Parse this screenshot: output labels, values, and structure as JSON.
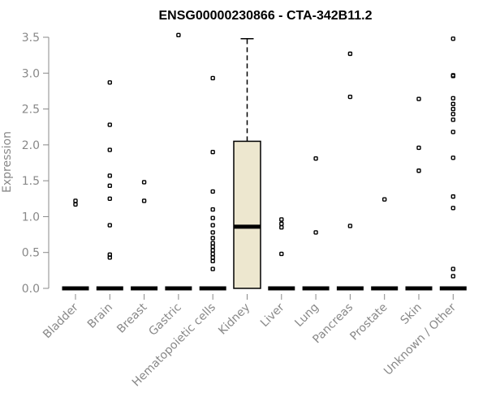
{
  "chart_data": {
    "type": "boxplot",
    "title": "ENSG00000230866 - CTA-342B11.2",
    "ylabel": "Expression",
    "xlabel": "",
    "ylim": [
      0,
      3.5
    ],
    "yticks": [
      "0.0",
      "0.5",
      "1.0",
      "1.5",
      "2.0",
      "2.5",
      "3.0",
      "3.5"
    ],
    "categories": [
      "Bladder",
      "Brain",
      "Breast",
      "Gastric",
      "Hematopoietic cells",
      "Kidney",
      "Liver",
      "Lung",
      "Pancreas",
      "Prostate",
      "Skin",
      "Unknown / Other"
    ],
    "box_color": "#ede7cf",
    "grid": false,
    "series": [
      {
        "category": "Bladder",
        "q1": 0,
        "median": 0,
        "q3": 0,
        "whisker_low": 0,
        "whisker_high": 0,
        "outliers": [
          1.17,
          1.22
        ]
      },
      {
        "category": "Brain",
        "q1": 0,
        "median": 0,
        "q3": 0,
        "whisker_low": 0,
        "whisker_high": 0,
        "outliers": [
          0.43,
          0.47,
          0.88,
          1.25,
          1.43,
          1.57,
          1.93,
          2.28,
          2.87
        ]
      },
      {
        "category": "Breast",
        "q1": 0,
        "median": 0,
        "q3": 0,
        "whisker_low": 0,
        "whisker_high": 0,
        "outliers": [
          1.22,
          1.48
        ]
      },
      {
        "category": "Gastric",
        "q1": 0,
        "median": 0,
        "q3": 0,
        "whisker_low": 0,
        "whisker_high": 0,
        "outliers": [
          3.53
        ]
      },
      {
        "category": "Hematopoietic cells",
        "q1": 0,
        "median": 0,
        "q3": 0,
        "whisker_low": 0,
        "whisker_high": 0,
        "outliers": [
          0.27,
          0.38,
          0.43,
          0.48,
          0.53,
          0.58,
          0.63,
          0.7,
          0.78,
          0.88,
          0.98,
          1.1,
          1.35,
          1.9,
          2.93
        ]
      },
      {
        "category": "Kidney",
        "q1": 0,
        "median": 0.86,
        "q3": 2.05,
        "whisker_low": 0,
        "whisker_high": 3.48,
        "outliers": []
      },
      {
        "category": "Liver",
        "q1": 0,
        "median": 0,
        "q3": 0,
        "whisker_low": 0,
        "whisker_high": 0,
        "outliers": [
          0.48,
          0.85,
          0.9,
          0.96
        ]
      },
      {
        "category": "Lung",
        "q1": 0,
        "median": 0,
        "q3": 0,
        "whisker_low": 0,
        "whisker_high": 0,
        "outliers": [
          0.78,
          1.81
        ]
      },
      {
        "category": "Pancreas",
        "q1": 0,
        "median": 0,
        "q3": 0,
        "whisker_low": 0,
        "whisker_high": 0,
        "outliers": [
          0.87,
          2.67,
          3.27
        ]
      },
      {
        "category": "Prostate",
        "q1": 0,
        "median": 0,
        "q3": 0,
        "whisker_low": 0,
        "whisker_high": 0,
        "outliers": [
          1.24
        ]
      },
      {
        "category": "Skin",
        "q1": 0,
        "median": 0,
        "q3": 0,
        "whisker_low": 0,
        "whisker_high": 0,
        "outliers": [
          1.64,
          1.96,
          2.64
        ]
      },
      {
        "category": "Unknown / Other",
        "q1": 0,
        "median": 0,
        "q3": 0,
        "whisker_low": 0,
        "whisker_high": 0,
        "outliers": [
          0.17,
          0.27,
          1.12,
          1.28,
          1.82,
          2.18,
          2.35,
          2.43,
          2.5,
          2.57,
          2.65,
          2.96,
          2.97,
          3.48
        ]
      }
    ]
  }
}
